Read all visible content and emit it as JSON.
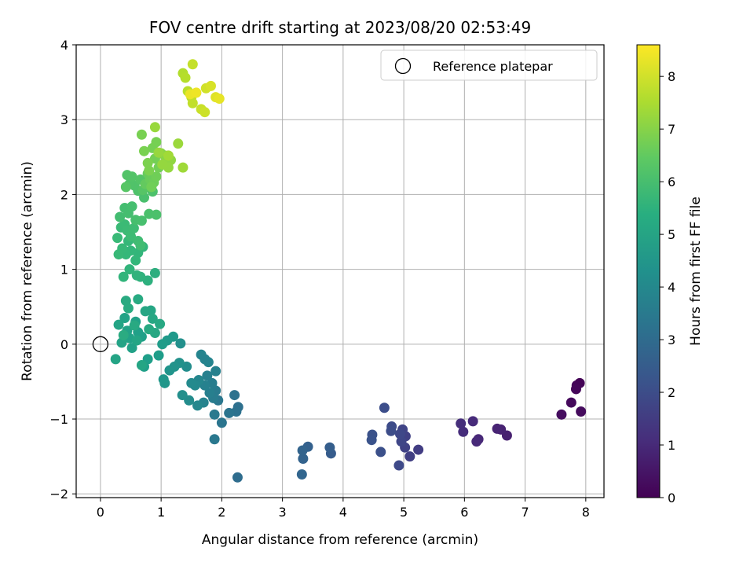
{
  "chart_data": {
    "type": "scatter",
    "title": "FOV centre drift starting at 2023/08/20 02:53:49",
    "xlabel": "Angular distance from reference (arcmin)",
    "ylabel": "Rotation from reference (arcmin)",
    "xlim": [
      -0.4,
      8.3
    ],
    "ylim": [
      -2.05,
      4.0
    ],
    "xticks": [
      0,
      1,
      2,
      3,
      4,
      5,
      6,
      7,
      8
    ],
    "yticks": [
      -2,
      -1,
      0,
      1,
      2,
      3,
      4
    ],
    "xtick_labels": [
      "0",
      "1",
      "2",
      "3",
      "4",
      "5",
      "6",
      "7",
      "8"
    ],
    "ytick_labels": [
      "−2",
      "−1",
      "0",
      "1",
      "2",
      "3",
      "4"
    ],
    "grid": true,
    "legend": {
      "position": "top-right",
      "entries": [
        "Reference platepar"
      ]
    },
    "reference_point": {
      "x": 0,
      "y": 0,
      "label": "Reference platepar"
    },
    "colorbar": {
      "label": "Hours from first FF file",
      "range": [
        0,
        8.6
      ],
      "ticks": [
        0,
        1,
        2,
        3,
        4,
        5,
        6,
        7,
        8
      ],
      "tick_labels": [
        "0",
        "1",
        "2",
        "3",
        "4",
        "5",
        "6",
        "7",
        "8"
      ],
      "colormap": "viridis"
    },
    "points": [
      {
        "x": 7.9,
        "y": -0.52,
        "h": 0.05
      },
      {
        "x": 7.85,
        "y": -0.55,
        "h": 0.1
      },
      {
        "x": 7.84,
        "y": -0.6,
        "h": 0.15
      },
      {
        "x": 7.76,
        "y": -0.78,
        "h": 0.2
      },
      {
        "x": 7.92,
        "y": -0.9,
        "h": 0.25
      },
      {
        "x": 7.6,
        "y": -0.94,
        "h": 0.3
      },
      {
        "x": 6.7,
        "y": -1.22,
        "h": 0.75
      },
      {
        "x": 6.6,
        "y": -1.14,
        "h": 0.8
      },
      {
        "x": 6.54,
        "y": -1.13,
        "h": 0.85
      },
      {
        "x": 6.23,
        "y": -1.27,
        "h": 0.95
      },
      {
        "x": 6.2,
        "y": -1.3,
        "h": 1.0
      },
      {
        "x": 6.14,
        "y": -1.03,
        "h": 1.05
      },
      {
        "x": 5.98,
        "y": -1.17,
        "h": 1.1
      },
      {
        "x": 5.94,
        "y": -1.06,
        "h": 1.15
      },
      {
        "x": 5.24,
        "y": -1.41,
        "h": 1.55
      },
      {
        "x": 5.1,
        "y": -1.5,
        "h": 1.6
      },
      {
        "x": 5.03,
        "y": -1.23,
        "h": 1.65
      },
      {
        "x": 5.02,
        "y": -1.38,
        "h": 1.7
      },
      {
        "x": 4.98,
        "y": -1.14,
        "h": 1.75
      },
      {
        "x": 4.96,
        "y": -1.3,
        "h": 1.8
      },
      {
        "x": 4.94,
        "y": -1.2,
        "h": 1.85
      },
      {
        "x": 4.92,
        "y": -1.62,
        "h": 1.9
      },
      {
        "x": 4.8,
        "y": -1.1,
        "h": 1.95
      },
      {
        "x": 4.79,
        "y": -1.16,
        "h": 2.0
      },
      {
        "x": 4.68,
        "y": -0.85,
        "h": 2.05
      },
      {
        "x": 4.62,
        "y": -1.44,
        "h": 2.1
      },
      {
        "x": 4.48,
        "y": -1.21,
        "h": 2.15
      },
      {
        "x": 4.47,
        "y": -1.28,
        "h": 2.2
      },
      {
        "x": 3.8,
        "y": -1.46,
        "h": 2.5
      },
      {
        "x": 3.78,
        "y": -1.38,
        "h": 2.55
      },
      {
        "x": 3.42,
        "y": -1.37,
        "h": 2.65
      },
      {
        "x": 3.34,
        "y": -1.53,
        "h": 2.7
      },
      {
        "x": 3.33,
        "y": -1.42,
        "h": 2.75
      },
      {
        "x": 3.32,
        "y": -1.74,
        "h": 2.8
      },
      {
        "x": 2.26,
        "y": -1.78,
        "h": 3.05
      },
      {
        "x": 2.27,
        "y": -0.84,
        "h": 3.15
      },
      {
        "x": 2.24,
        "y": -0.9,
        "h": 3.2
      },
      {
        "x": 2.21,
        "y": -0.68,
        "h": 3.25
      },
      {
        "x": 2.12,
        "y": -0.92,
        "h": 3.3
      },
      {
        "x": 2.0,
        "y": -1.05,
        "h": 3.35
      },
      {
        "x": 1.94,
        "y": -0.75,
        "h": 3.4
      },
      {
        "x": 1.88,
        "y": -1.27,
        "h": 3.45
      },
      {
        "x": 1.88,
        "y": -0.94,
        "h": 3.5
      },
      {
        "x": 1.9,
        "y": -0.62,
        "h": 3.55
      },
      {
        "x": 1.86,
        "y": -0.72,
        "h": 3.6
      },
      {
        "x": 1.84,
        "y": -0.52,
        "h": 3.65
      },
      {
        "x": 1.8,
        "y": -0.65,
        "h": 3.7
      },
      {
        "x": 1.76,
        "y": -0.42,
        "h": 3.75
      },
      {
        "x": 1.72,
        "y": -0.55,
        "h": 3.8
      },
      {
        "x": 1.7,
        "y": -0.78,
        "h": 3.85
      },
      {
        "x": 1.66,
        "y": -0.14,
        "h": 3.9
      },
      {
        "x": 1.62,
        "y": -0.48,
        "h": 3.95
      },
      {
        "x": 1.6,
        "y": -0.82,
        "h": 4.0
      },
      {
        "x": 1.56,
        "y": -0.55,
        "h": 4.05
      },
      {
        "x": 1.5,
        "y": -0.52,
        "h": 4.1
      },
      {
        "x": 1.46,
        "y": -0.75,
        "h": 4.15
      },
      {
        "x": 1.42,
        "y": -0.3,
        "h": 4.2
      },
      {
        "x": 1.35,
        "y": -0.68,
        "h": 4.25
      },
      {
        "x": 1.32,
        "y": 0.01,
        "h": 4.3
      },
      {
        "x": 1.3,
        "y": -0.25,
        "h": 4.35
      },
      {
        "x": 1.22,
        "y": -0.3,
        "h": 4.4
      },
      {
        "x": 1.14,
        "y": -0.35,
        "h": 4.45
      },
      {
        "x": 1.06,
        "y": -0.52,
        "h": 4.5
      },
      {
        "x": 1.04,
        "y": -0.47,
        "h": 4.55
      },
      {
        "x": 1.2,
        "y": 0.1,
        "h": 4.6
      },
      {
        "x": 1.1,
        "y": 0.05,
        "h": 4.65
      },
      {
        "x": 1.02,
        "y": 0.0,
        "h": 4.7
      },
      {
        "x": 0.96,
        "y": -0.15,
        "h": 4.75
      },
      {
        "x": 1.78,
        "y": -0.24,
        "h": 3.9
      },
      {
        "x": 1.9,
        "y": -0.36,
        "h": 3.8
      },
      {
        "x": 1.72,
        "y": -0.2,
        "h": 3.85
      },
      {
        "x": 0.78,
        "y": -0.2,
        "h": 4.8
      },
      {
        "x": 0.72,
        "y": -0.3,
        "h": 4.82
      },
      {
        "x": 0.68,
        "y": 0.1,
        "h": 4.84
      },
      {
        "x": 0.62,
        "y": 0.16,
        "h": 4.86
      },
      {
        "x": 0.58,
        "y": 0.3,
        "h": 4.88
      },
      {
        "x": 0.52,
        "y": -0.05,
        "h": 4.9
      },
      {
        "x": 0.48,
        "y": 0.08,
        "h": 4.92
      },
      {
        "x": 0.44,
        "y": 0.18,
        "h": 4.94
      },
      {
        "x": 0.4,
        "y": 0.35,
        "h": 4.96
      },
      {
        "x": 0.35,
        "y": 0.02,
        "h": 4.98
      },
      {
        "x": 0.3,
        "y": 0.26,
        "h": 5.0
      },
      {
        "x": 0.25,
        "y": -0.2,
        "h": 5.02
      },
      {
        "x": 0.6,
        "y": 0.05,
        "h": 5.04
      },
      {
        "x": 0.68,
        "y": -0.28,
        "h": 5.06
      },
      {
        "x": 0.74,
        "y": 0.44,
        "h": 5.08
      },
      {
        "x": 0.83,
        "y": 0.45,
        "h": 5.1
      },
      {
        "x": 0.86,
        "y": 0.34,
        "h": 5.12
      },
      {
        "x": 0.9,
        "y": 0.15,
        "h": 5.14
      },
      {
        "x": 0.98,
        "y": 0.27,
        "h": 5.16
      },
      {
        "x": 0.8,
        "y": 0.2,
        "h": 5.18
      },
      {
        "x": 0.56,
        "y": 0.25,
        "h": 5.2
      },
      {
        "x": 0.62,
        "y": 0.6,
        "h": 5.22
      },
      {
        "x": 0.42,
        "y": 0.58,
        "h": 5.24
      },
      {
        "x": 0.46,
        "y": 0.48,
        "h": 5.26
      },
      {
        "x": 0.38,
        "y": 0.12,
        "h": 5.28
      },
      {
        "x": 0.9,
        "y": 0.95,
        "h": 5.4
      },
      {
        "x": 0.78,
        "y": 0.85,
        "h": 5.45
      },
      {
        "x": 0.66,
        "y": 0.9,
        "h": 5.5
      },
      {
        "x": 0.6,
        "y": 0.92,
        "h": 5.55
      },
      {
        "x": 0.48,
        "y": 1.0,
        "h": 5.6
      },
      {
        "x": 0.38,
        "y": 0.9,
        "h": 5.62
      },
      {
        "x": 0.7,
        "y": 1.3,
        "h": 5.64
      },
      {
        "x": 0.62,
        "y": 1.22,
        "h": 5.66
      },
      {
        "x": 0.58,
        "y": 1.12,
        "h": 5.68
      },
      {
        "x": 0.5,
        "y": 1.25,
        "h": 5.7
      },
      {
        "x": 0.46,
        "y": 1.38,
        "h": 5.72
      },
      {
        "x": 0.42,
        "y": 1.2,
        "h": 5.74
      },
      {
        "x": 0.36,
        "y": 1.28,
        "h": 5.76
      },
      {
        "x": 0.3,
        "y": 1.2,
        "h": 5.78
      },
      {
        "x": 0.28,
        "y": 1.42,
        "h": 5.8
      },
      {
        "x": 0.34,
        "y": 1.56,
        "h": 5.82
      },
      {
        "x": 0.4,
        "y": 1.6,
        "h": 5.84
      },
      {
        "x": 0.44,
        "y": 1.52,
        "h": 5.86
      },
      {
        "x": 0.5,
        "y": 1.44,
        "h": 5.88
      },
      {
        "x": 0.55,
        "y": 1.55,
        "h": 5.9
      },
      {
        "x": 0.62,
        "y": 1.38,
        "h": 5.92
      },
      {
        "x": 0.66,
        "y": 1.32,
        "h": 5.94
      },
      {
        "x": 0.32,
        "y": 1.7,
        "h": 5.96
      },
      {
        "x": 0.4,
        "y": 1.82,
        "h": 5.98
      },
      {
        "x": 0.46,
        "y": 1.75,
        "h": 6.0
      },
      {
        "x": 0.52,
        "y": 1.84,
        "h": 6.02
      },
      {
        "x": 0.58,
        "y": 1.66,
        "h": 6.04
      },
      {
        "x": 0.68,
        "y": 1.65,
        "h": 6.06
      },
      {
        "x": 0.72,
        "y": 1.96,
        "h": 6.08
      },
      {
        "x": 0.8,
        "y": 1.74,
        "h": 6.1
      },
      {
        "x": 0.92,
        "y": 1.73,
        "h": 6.12
      },
      {
        "x": 0.86,
        "y": 2.04,
        "h": 6.14
      },
      {
        "x": 0.62,
        "y": 2.05,
        "h": 6.16
      },
      {
        "x": 0.56,
        "y": 2.12,
        "h": 6.18
      },
      {
        "x": 0.48,
        "y": 2.14,
        "h": 6.2
      },
      {
        "x": 0.44,
        "y": 2.26,
        "h": 6.22
      },
      {
        "x": 0.52,
        "y": 2.24,
        "h": 6.24
      },
      {
        "x": 0.66,
        "y": 2.2,
        "h": 6.26
      },
      {
        "x": 0.7,
        "y": 2.06,
        "h": 6.28
      },
      {
        "x": 0.42,
        "y": 2.1,
        "h": 6.3
      },
      {
        "x": 0.74,
        "y": 2.14,
        "h": 6.5
      },
      {
        "x": 0.78,
        "y": 2.28,
        "h": 6.55
      },
      {
        "x": 0.82,
        "y": 2.2,
        "h": 6.6
      },
      {
        "x": 0.88,
        "y": 2.16,
        "h": 6.65
      },
      {
        "x": 0.92,
        "y": 2.24,
        "h": 6.7
      },
      {
        "x": 0.84,
        "y": 2.1,
        "h": 6.72
      },
      {
        "x": 0.96,
        "y": 2.36,
        "h": 6.74
      },
      {
        "x": 0.9,
        "y": 2.48,
        "h": 6.76
      },
      {
        "x": 0.86,
        "y": 2.62,
        "h": 6.78
      },
      {
        "x": 0.92,
        "y": 2.7,
        "h": 6.8
      },
      {
        "x": 0.68,
        "y": 2.8,
        "h": 6.82
      },
      {
        "x": 0.72,
        "y": 2.58,
        "h": 6.84
      },
      {
        "x": 0.8,
        "y": 2.32,
        "h": 6.86
      },
      {
        "x": 0.78,
        "y": 2.42,
        "h": 6.88
      },
      {
        "x": 1.0,
        "y": 2.55,
        "h": 7.0
      },
      {
        "x": 1.06,
        "y": 2.52,
        "h": 7.05
      },
      {
        "x": 1.1,
        "y": 2.42,
        "h": 7.1
      },
      {
        "x": 1.16,
        "y": 2.46,
        "h": 7.15
      },
      {
        "x": 1.12,
        "y": 2.36,
        "h": 7.2
      },
      {
        "x": 1.02,
        "y": 2.4,
        "h": 7.22
      },
      {
        "x": 0.96,
        "y": 2.56,
        "h": 7.24
      },
      {
        "x": 0.9,
        "y": 2.9,
        "h": 7.26
      },
      {
        "x": 1.28,
        "y": 2.68,
        "h": 7.3
      },
      {
        "x": 1.36,
        "y": 2.36,
        "h": 7.35
      },
      {
        "x": 1.12,
        "y": 2.52,
        "h": 7.38
      },
      {
        "x": 1.36,
        "y": 3.62,
        "h": 7.6
      },
      {
        "x": 1.4,
        "y": 3.56,
        "h": 7.65
      },
      {
        "x": 1.44,
        "y": 3.38,
        "h": 7.7
      },
      {
        "x": 1.5,
        "y": 3.3,
        "h": 7.75
      },
      {
        "x": 1.52,
        "y": 3.22,
        "h": 7.8
      },
      {
        "x": 1.52,
        "y": 3.74,
        "h": 7.85
      },
      {
        "x": 1.66,
        "y": 3.14,
        "h": 7.9
      },
      {
        "x": 1.72,
        "y": 3.1,
        "h": 7.95
      },
      {
        "x": 1.74,
        "y": 3.42,
        "h": 8.0
      },
      {
        "x": 1.82,
        "y": 3.45,
        "h": 8.1
      },
      {
        "x": 1.9,
        "y": 3.3,
        "h": 8.2
      },
      {
        "x": 1.96,
        "y": 3.28,
        "h": 8.3
      },
      {
        "x": 1.48,
        "y": 3.34,
        "h": 8.35
      },
      {
        "x": 1.58,
        "y": 3.36,
        "h": 8.4
      }
    ]
  }
}
